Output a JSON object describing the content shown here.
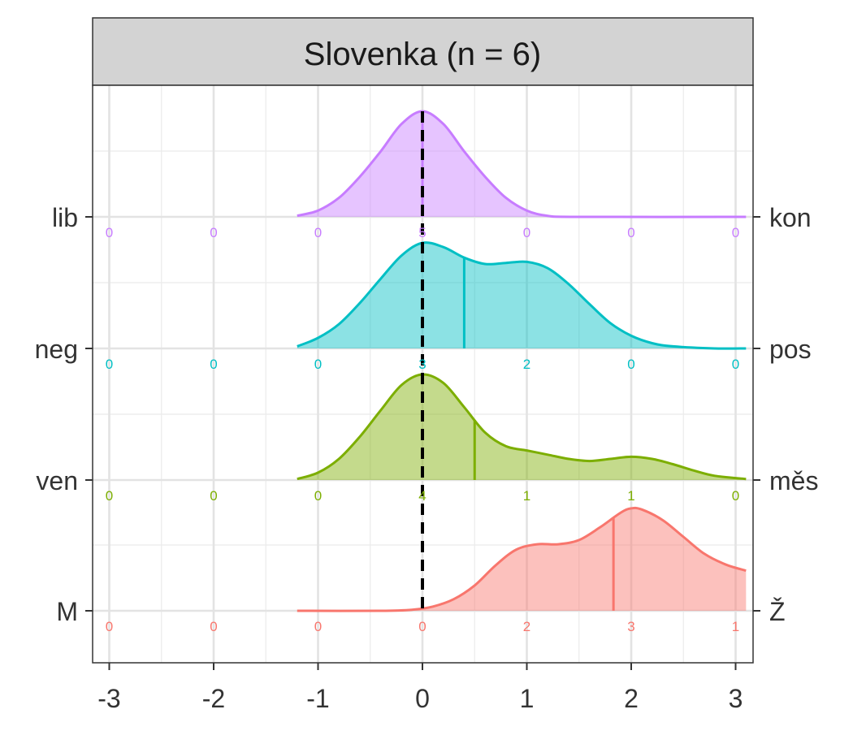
{
  "chart_data": {
    "type": "ridgeline",
    "title": "Slovenka (n = 6)",
    "x_ticks": [
      "-3",
      "-2",
      "-1",
      "0",
      "1",
      "2",
      "3"
    ],
    "xlim": [
      -3.15,
      3.15
    ],
    "ref_line_x": 0,
    "series": [
      {
        "left_label": "lib",
        "right_label": "kon",
        "color": "#C77CFF",
        "mean": 0,
        "counts": [
          0,
          0,
          0,
          5,
          0,
          0,
          0
        ],
        "count_labels": [
          "0",
          "0",
          "0",
          "5",
          "0",
          "0",
          "0"
        ],
        "density": [
          [
            -1.2,
            0.01
          ],
          [
            -1.0,
            0.06
          ],
          [
            -0.8,
            0.18
          ],
          [
            -0.6,
            0.38
          ],
          [
            -0.4,
            0.62
          ],
          [
            -0.2,
            0.88
          ],
          [
            0.0,
            1.0
          ],
          [
            0.2,
            0.88
          ],
          [
            0.4,
            0.62
          ],
          [
            0.6,
            0.38
          ],
          [
            0.8,
            0.18
          ],
          [
            1.0,
            0.06
          ],
          [
            1.2,
            0.01
          ],
          [
            1.5,
            0.0
          ],
          [
            3.1,
            0.0
          ]
        ]
      },
      {
        "left_label": "neg",
        "right_label": "pos",
        "color": "#00BFC4",
        "mean": 0.4,
        "counts": [
          0,
          0,
          0,
          3,
          2,
          0,
          0
        ],
        "count_labels": [
          "0",
          "0",
          "0",
          "3",
          "2",
          "0",
          "0"
        ],
        "density": [
          [
            -1.2,
            0.02
          ],
          [
            -1.0,
            0.1
          ],
          [
            -0.8,
            0.23
          ],
          [
            -0.6,
            0.43
          ],
          [
            -0.4,
            0.66
          ],
          [
            -0.2,
            0.88
          ],
          [
            0.0,
            1.0
          ],
          [
            0.2,
            0.96
          ],
          [
            0.4,
            0.86
          ],
          [
            0.6,
            0.8
          ],
          [
            0.8,
            0.81
          ],
          [
            1.0,
            0.82
          ],
          [
            1.2,
            0.76
          ],
          [
            1.4,
            0.61
          ],
          [
            1.6,
            0.42
          ],
          [
            1.8,
            0.24
          ],
          [
            2.0,
            0.12
          ],
          [
            2.2,
            0.05
          ],
          [
            2.4,
            0.02
          ],
          [
            2.8,
            0.0
          ],
          [
            3.1,
            0.0
          ]
        ]
      },
      {
        "left_label": "ven",
        "right_label": "měs",
        "color": "#7CAE00",
        "mean": 0.5,
        "counts": [
          0,
          0,
          0,
          4,
          1,
          1,
          0
        ],
        "count_labels": [
          "0",
          "0",
          "0",
          "4",
          "1",
          "1",
          "0"
        ],
        "density": [
          [
            -1.2,
            0.01
          ],
          [
            -1.0,
            0.07
          ],
          [
            -0.8,
            0.2
          ],
          [
            -0.6,
            0.41
          ],
          [
            -0.4,
            0.66
          ],
          [
            -0.2,
            0.9
          ],
          [
            0.0,
            1.0
          ],
          [
            0.2,
            0.92
          ],
          [
            0.4,
            0.69
          ],
          [
            0.6,
            0.45
          ],
          [
            0.8,
            0.32
          ],
          [
            1.0,
            0.28
          ],
          [
            1.2,
            0.24
          ],
          [
            1.4,
            0.2
          ],
          [
            1.6,
            0.18
          ],
          [
            1.8,
            0.2
          ],
          [
            2.0,
            0.22
          ],
          [
            2.2,
            0.2
          ],
          [
            2.4,
            0.15
          ],
          [
            2.6,
            0.09
          ],
          [
            2.8,
            0.04
          ],
          [
            3.1,
            0.01
          ]
        ]
      },
      {
        "left_label": "M",
        "right_label": "Ž",
        "color": "#F8766D",
        "mean": 1.83,
        "counts": [
          0,
          0,
          0,
          0,
          2,
          3,
          1
        ],
        "count_labels": [
          "0",
          "0",
          "0",
          "0",
          "2",
          "3",
          "1"
        ],
        "density": [
          [
            -1.2,
            0.0
          ],
          [
            -0.4,
            0.0
          ],
          [
            -0.1,
            0.01
          ],
          [
            0.1,
            0.04
          ],
          [
            0.3,
            0.11
          ],
          [
            0.5,
            0.24
          ],
          [
            0.7,
            0.43
          ],
          [
            0.9,
            0.58
          ],
          [
            1.1,
            0.63
          ],
          [
            1.3,
            0.63
          ],
          [
            1.5,
            0.67
          ],
          [
            1.7,
            0.79
          ],
          [
            1.9,
            0.93
          ],
          [
            2.0,
            0.97
          ],
          [
            2.1,
            0.96
          ],
          [
            2.3,
            0.86
          ],
          [
            2.5,
            0.7
          ],
          [
            2.7,
            0.54
          ],
          [
            2.9,
            0.44
          ],
          [
            3.1,
            0.38
          ]
        ]
      }
    ]
  }
}
